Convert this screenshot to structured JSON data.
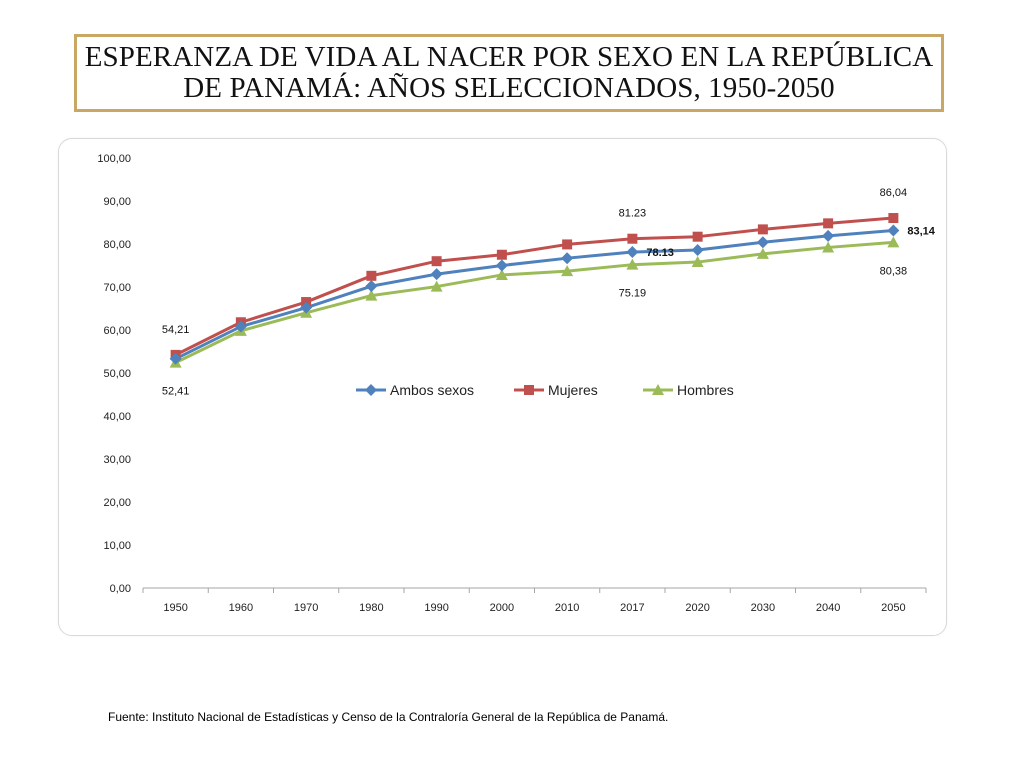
{
  "title": "ESPERANZA DE VIDA AL NACER POR SEXO EN LA REPÚBLICA DE PANAMÁ: AÑOS SELECCIONADOS, 1950-2050",
  "source": "Fuente: Instituto Nacional de Estadísticas y Censo de la Contraloría General de la República de Panamá.",
  "chart_data": {
    "type": "line",
    "title": "ESPERANZA DE VIDA AL NACER POR SEXO EN LA REPÚBLICA DE PANAMÁ: AÑOS SELECCIONADOS, 1950-2050",
    "xlabel": "",
    "ylabel": "",
    "ylim": [
      0,
      100
    ],
    "grid": false,
    "legend_position": "center",
    "categories": [
      "1950",
      "1960",
      "1970",
      "1980",
      "1990",
      "2000",
      "2010",
      "2017",
      "2020",
      "2030",
      "2040",
      "2050"
    ],
    "y_ticks": [
      "0,00",
      "10,00",
      "20,00",
      "30,00",
      "40,00",
      "50,00",
      "60,00",
      "70,00",
      "80,00",
      "90,00",
      "100,00"
    ],
    "series": [
      {
        "name": "Ambos sexos",
        "color": "#4f81bd",
        "marker": "diamond",
        "values": [
          53.3,
          60.8,
          65.2,
          70.2,
          73.0,
          75.0,
          76.7,
          78.13,
          78.6,
          80.4,
          81.9,
          83.14
        ]
      },
      {
        "name": "Mujeres",
        "color": "#c0504d",
        "marker": "square",
        "values": [
          54.21,
          61.8,
          66.5,
          72.6,
          76.0,
          77.5,
          79.9,
          81.23,
          81.7,
          83.4,
          84.8,
          86.04
        ]
      },
      {
        "name": "Hombres",
        "color": "#9bbb59",
        "marker": "triangle",
        "values": [
          52.41,
          59.8,
          64.0,
          68.0,
          70.1,
          72.8,
          73.7,
          75.19,
          75.8,
          77.7,
          79.2,
          80.38
        ]
      }
    ],
    "data_labels": [
      {
        "series": 1,
        "index": 0,
        "text": "54,21",
        "position": "above",
        "bold": false
      },
      {
        "series": 2,
        "index": 0,
        "text": "52,41",
        "position": "below",
        "bold": false
      },
      {
        "series": 1,
        "index": 7,
        "text": "81.23",
        "position": "above",
        "bold": false
      },
      {
        "series": 0,
        "index": 7,
        "text": "78.13",
        "position": "right",
        "bold": true
      },
      {
        "series": 2,
        "index": 7,
        "text": "75.19",
        "position": "below",
        "bold": false
      },
      {
        "series": 1,
        "index": 11,
        "text": "86,04",
        "position": "above",
        "bold": false
      },
      {
        "series": 0,
        "index": 11,
        "text": "83,14",
        "position": "right",
        "bold": true
      },
      {
        "series": 2,
        "index": 11,
        "text": "80,38",
        "position": "below",
        "bold": false
      }
    ]
  }
}
